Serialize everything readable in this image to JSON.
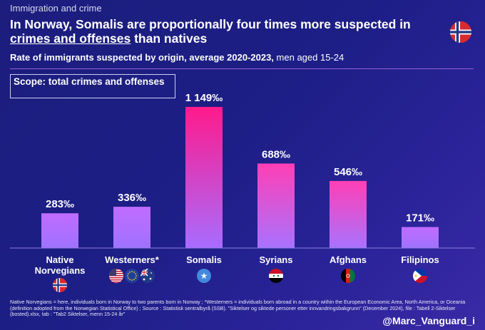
{
  "topic": "Immigration and crime",
  "headline": {
    "part1": "In Norway, Somalis are proportionally four times more suspected in ",
    "underlined": "crimes and offenses",
    "part2": " than natives"
  },
  "subtitle": {
    "bold": "Rate of immigrants suspected by origin, average 2020-2023,",
    "rest": " men aged 15-24"
  },
  "scope_label": "Scope: total crimes and offenses",
  "chart_data": {
    "type": "bar",
    "title": "Rate of immigrants suspected by origin, average 2020-2023, men aged 15-24",
    "unit": "‰",
    "categories": [
      "Native Norvegians",
      "Westerners*",
      "Somalis",
      "Syrians",
      "Afghans",
      "Filipinos"
    ],
    "values": [
      283,
      336,
      1149,
      688,
      546,
      171
    ],
    "labels": [
      "283‰",
      "336‰",
      "1 149‰",
      "688‰",
      "546‰",
      "171‰"
    ],
    "ylim": [
      0,
      1149
    ],
    "grid": false,
    "flags": [
      [
        "norway-flag-icon"
      ],
      [
        "usa-flag-icon",
        "eu-flag-icon",
        "australia-flag-icon"
      ],
      [
        "somalia-flag-icon"
      ],
      [
        "syria-flag-icon"
      ],
      [
        "afghanistan-flag-icon"
      ],
      [
        "philippines-flag-icon"
      ]
    ],
    "colors": {
      "somalis_top": "#ff1a8c",
      "somalis_bottom": "#a86cff",
      "bar_top": "#ff3fb5",
      "bar_bottom": "#a972ff",
      "low_top": "#c06cff",
      "low_bottom": "#9f72ff"
    }
  },
  "footnote": "Native Norvegians = here, individuals born in Norway to two parents born in Norway ; *Westerners = individuals born abroad in a country within the European Economic Area, North America, or Oceania (definition adopted from the Norwegian Statistical Office) ; Source : Statistisk sentralbyrå (SSB). \"Siktelser og siktede personer etter innvandringsbakgrunn\" (December 2024), file : Tabell 2-Siktelser (bosted).xlsx, tab : \"Tab2 Siktelser, menn 15-24 år\"",
  "handle": "@Marc_Vanguard_i"
}
